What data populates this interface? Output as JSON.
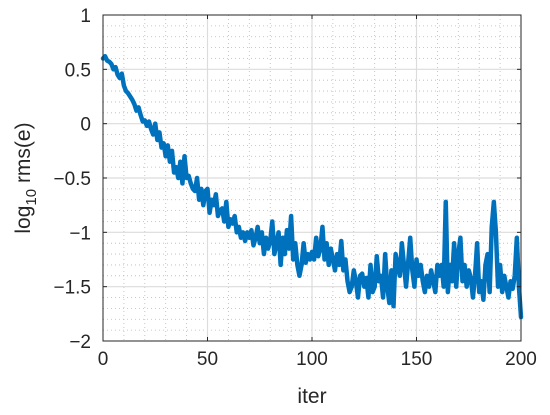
{
  "chart_data": {
    "type": "line",
    "title": "",
    "xlabel": "iter",
    "ylabel_main": "log",
    "ylabel_sub": "10",
    "ylabel_rest": " rms(e)",
    "xlim": [
      0,
      200
    ],
    "ylim": [
      -2,
      1
    ],
    "x_ticks": [
      0,
      50,
      100,
      150,
      200
    ],
    "x_tick_labels": [
      "0",
      "50",
      "100",
      "150",
      "200"
    ],
    "y_ticks": [
      -2,
      -1.5,
      -1,
      -0.5,
      0,
      0.5,
      1
    ],
    "y_tick_labels": [
      "−2",
      "−1.5",
      "−1",
      "−0.5",
      "0",
      "0.5",
      "1"
    ],
    "grid": "major and minor",
    "legend": "none",
    "colors": {
      "line": "#0072BD",
      "major_grid": "#dcdcdc",
      "minor_grid": "#b8b8b8",
      "axis": "#262626"
    },
    "series": [
      {
        "x": [
          0,
          1,
          2,
          3,
          4,
          5,
          6,
          7,
          8,
          9,
          10,
          11,
          12,
          13,
          14,
          15,
          16,
          17,
          18,
          19,
          20,
          21,
          22,
          23,
          24,
          25,
          26,
          27,
          28,
          29,
          30,
          31,
          32,
          33,
          34,
          35,
          36,
          37,
          38,
          39,
          40,
          41,
          42,
          43,
          44,
          45,
          46,
          47,
          48,
          49,
          50,
          51,
          52,
          53,
          54,
          55,
          56,
          57,
          58,
          59,
          60,
          61,
          62,
          63,
          64,
          65,
          66,
          67,
          68,
          69,
          70,
          71,
          72,
          73,
          74,
          75,
          76,
          77,
          78,
          79,
          80,
          81,
          82,
          83,
          84,
          85,
          86,
          87,
          88,
          89,
          90,
          91,
          92,
          93,
          94,
          95,
          96,
          97,
          98,
          99,
          100,
          101,
          102,
          103,
          104,
          105,
          106,
          107,
          108,
          109,
          110,
          111,
          112,
          113,
          114,
          115,
          116,
          117,
          118,
          119,
          120,
          121,
          122,
          123,
          124,
          125,
          126,
          127,
          128,
          129,
          130,
          131,
          132,
          133,
          134,
          135,
          136,
          137,
          138,
          139,
          140,
          141,
          142,
          143,
          144,
          145,
          146,
          147,
          148,
          149,
          150,
          151,
          152,
          153,
          154,
          155,
          156,
          157,
          158,
          159,
          160,
          161,
          162,
          163,
          164,
          165,
          166,
          167,
          168,
          169,
          170,
          171,
          172,
          173,
          174,
          175,
          176,
          177,
          178,
          179,
          180,
          181,
          182,
          183,
          184,
          185,
          186,
          187,
          188,
          189,
          190,
          191,
          192,
          193,
          194,
          195,
          196,
          197,
          198,
          199,
          200
        ],
        "values": [
          0.6,
          0.62,
          0.58,
          0.57,
          0.55,
          0.5,
          0.52,
          0.45,
          0.42,
          0.46,
          0.35,
          0.3,
          0.28,
          0.25,
          0.22,
          0.18,
          0.12,
          0.15,
          0.08,
          0.02,
          0.03,
          -0.02,
          0.02,
          -0.05,
          -0.1,
          0.0,
          -0.15,
          -0.08,
          -0.22,
          -0.18,
          -0.3,
          -0.2,
          -0.35,
          -0.25,
          -0.45,
          -0.4,
          -0.5,
          -0.35,
          -0.55,
          -0.3,
          -0.5,
          -0.48,
          -0.55,
          -0.6,
          -0.62,
          -0.5,
          -0.7,
          -0.6,
          -0.75,
          -0.62,
          -0.6,
          -0.82,
          -0.7,
          -0.75,
          -0.65,
          -0.85,
          -0.8,
          -0.78,
          -0.9,
          -0.72,
          -0.95,
          -0.88,
          -0.92,
          -0.85,
          -1.0,
          -0.95,
          -1.05,
          -1.0,
          -1.08,
          -1.0,
          -1.05,
          -0.98,
          -1.12,
          -1.05,
          -0.95,
          -1.1,
          -1.0,
          -1.2,
          -1.05,
          -1.15,
          -1.08,
          -0.9,
          -1.2,
          -1.1,
          -1.0,
          -1.3,
          -1.05,
          -1.2,
          -0.98,
          -1.15,
          -0.85,
          -1.25,
          -1.1,
          -1.3,
          -1.4,
          -1.3,
          -1.1,
          -1.28,
          -1.2,
          -1.25,
          -1.18,
          -1.25,
          -1.05,
          -1.22,
          -1.15,
          -0.95,
          -1.25,
          -1.1,
          -1.3,
          -1.15,
          -1.25,
          -1.35,
          -1.2,
          -1.3,
          -1.08,
          -1.35,
          -1.25,
          -1.45,
          -1.55,
          -1.5,
          -1.35,
          -1.45,
          -1.6,
          -1.4,
          -1.38,
          -1.5,
          -1.42,
          -1.6,
          -1.3,
          -1.55,
          -1.5,
          -1.22,
          -1.45,
          -1.4,
          -1.6,
          -1.2,
          -1.5,
          -1.65,
          -1.35,
          -1.68,
          -1.2,
          -1.3,
          -1.4,
          -1.1,
          -1.3,
          -1.5,
          -1.28,
          -1.05,
          -1.35,
          -1.5,
          -1.25,
          -1.4,
          -1.3,
          -1.45,
          -1.55,
          -1.4,
          -1.5,
          -1.35,
          -1.45,
          -1.55,
          -1.3,
          -1.4,
          -1.3,
          -1.5,
          -0.72,
          -1.55,
          -1.3,
          -1.45,
          -1.1,
          -1.5,
          -1.2,
          -1.05,
          -1.45,
          -1.3,
          -1.5,
          -1.35,
          -1.42,
          -1.6,
          -1.4,
          -1.1,
          -1.55,
          -1.45,
          -1.62,
          -1.3,
          -1.2,
          -1.55,
          -0.95,
          -0.72,
          -1.0,
          -1.5,
          -1.3,
          -1.55,
          -1.4,
          -1.5,
          -1.6,
          -1.45,
          -1.52,
          -1.4,
          -1.05,
          -1.5,
          -1.78
        ]
      }
    ]
  }
}
